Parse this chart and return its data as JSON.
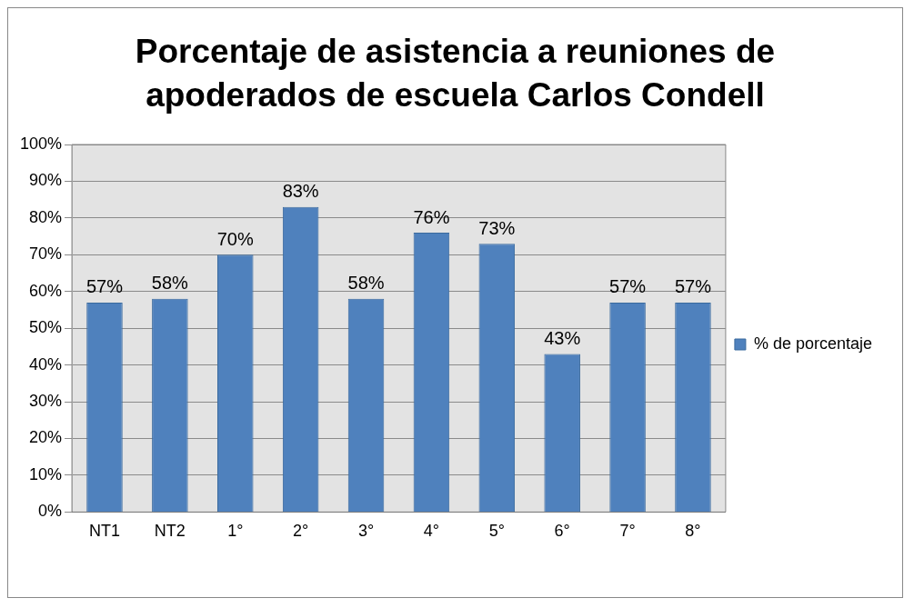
{
  "chart_data": {
    "type": "bar",
    "title": "Porcentaje de asistencia a reuniones de apoderados de escuela Carlos Condell",
    "categories": [
      "NT1",
      "NT2",
      "1°",
      "2°",
      "3°",
      "4°",
      "5°",
      "6°",
      "7°",
      "8°"
    ],
    "series": [
      {
        "name": "% de porcentaje",
        "color": "#4f81bd",
        "values": [
          57,
          58,
          70,
          83,
          58,
          76,
          73,
          43,
          57,
          57
        ],
        "value_labels": [
          "57%",
          "58%",
          "70%",
          "83%",
          "58%",
          "76%",
          "73%",
          "43%",
          "57%",
          "57%"
        ]
      }
    ],
    "ylim": [
      0,
      100
    ],
    "yticks": [
      {
        "value": 0,
        "label": "0%"
      },
      {
        "value": 10,
        "label": "10%"
      },
      {
        "value": 20,
        "label": "20%"
      },
      {
        "value": 30,
        "label": "30%"
      },
      {
        "value": 40,
        "label": "40%"
      },
      {
        "value": 50,
        "label": "50%"
      },
      {
        "value": 60,
        "label": "60%"
      },
      {
        "value": 70,
        "label": "70%"
      },
      {
        "value": 80,
        "label": "80%"
      },
      {
        "value": 90,
        "label": "90%"
      },
      {
        "value": 100,
        "label": "100%"
      }
    ],
    "grid": "y",
    "legend": "right"
  }
}
